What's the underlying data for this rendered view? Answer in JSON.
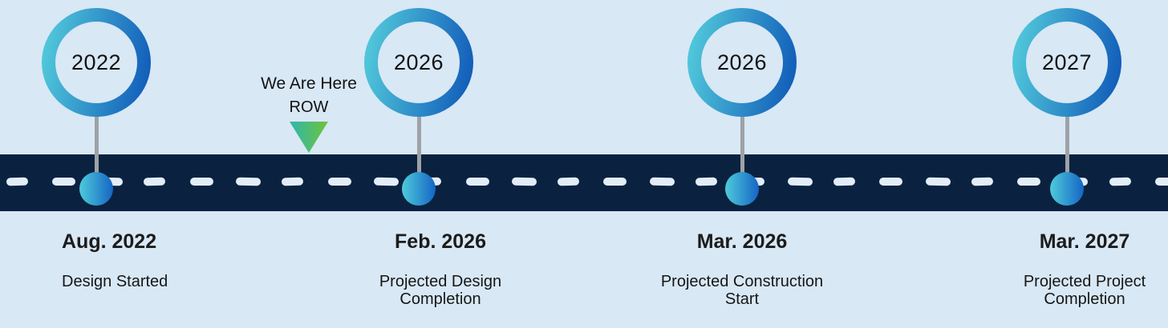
{
  "colors": {
    "background": "#d8e8f5",
    "road": "#0a2240",
    "dash": "#e2edf8",
    "ring_start": "#56d0dd",
    "ring_end": "#0d55b7",
    "dot_start": "#4ecadb",
    "dot_end": "#1565c5",
    "stem": "#9ea2a6",
    "triangle_start": "#2eb7ae",
    "triangle_end": "#6fc438"
  },
  "here_marker": {
    "line1": "We Are Here",
    "line2": "ROW"
  },
  "milestones": [
    {
      "year": "2022",
      "date": "Aug. 2022",
      "description": "Design Started"
    },
    {
      "year": "2026",
      "date": "Feb. 2026",
      "description": "Projected Design Completion"
    },
    {
      "year": "2026",
      "date": "Mar. 2026",
      "description": "Projected Construction Start"
    },
    {
      "year": "2027",
      "date": "Mar. 2027",
      "description": "Projected Project Completion"
    }
  ]
}
